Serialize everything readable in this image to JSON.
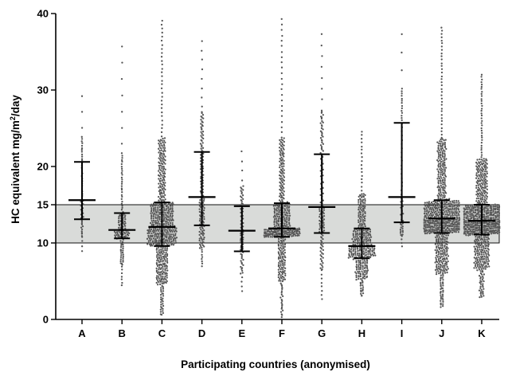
{
  "chart_data": {
    "type": "scatter",
    "subtype": "dot-plot-median-iqr",
    "xlabel": "Participating countries (anonymised)",
    "ylabel_prefix": "HC equivalent mg/m",
    "ylabel_sup": "2",
    "ylabel_suffix": "/day",
    "ylim": [
      0,
      40
    ],
    "yticks": [
      0,
      10,
      15,
      20,
      30,
      40
    ],
    "grid": false,
    "reference_band": {
      "from": 10,
      "to": 15,
      "color": "#d9dbd9"
    },
    "point_color": "#555555",
    "categories": [
      "A",
      "B",
      "C",
      "D",
      "E",
      "F",
      "G",
      "H",
      "I",
      "J",
      "K"
    ],
    "groups": [
      {
        "name": "A",
        "n": 60,
        "min": 8.6,
        "q1": 13.1,
        "median": 15.6,
        "q3": 20.6,
        "max": 30.3
      },
      {
        "name": "B",
        "n": 140,
        "min": 4.2,
        "q1": 10.6,
        "median": 11.7,
        "q3": 13.9,
        "max": 36.7
      },
      {
        "name": "C",
        "n": 600,
        "min": 0.5,
        "q1": 9.6,
        "median": 12.1,
        "q3": 15.3,
        "max": 39.3
      },
      {
        "name": "D",
        "n": 160,
        "min": 6.8,
        "q1": 12.3,
        "median": 16.0,
        "q3": 21.9,
        "max": 37.0
      },
      {
        "name": "E",
        "n": 80,
        "min": 3.4,
        "q1": 8.9,
        "median": 11.6,
        "q3": 14.8,
        "max": 22.6
      },
      {
        "name": "F",
        "n": 450,
        "min": 0.2,
        "q1": 10.8,
        "median": 11.9,
        "q3": 15.2,
        "max": 39.6
      },
      {
        "name": "G",
        "n": 150,
        "min": 2.4,
        "q1": 11.3,
        "median": 14.7,
        "q3": 21.6,
        "max": 38.0
      },
      {
        "name": "H",
        "n": 350,
        "min": 3.0,
        "q1": 8.0,
        "median": 9.6,
        "q3": 11.9,
        "max": 24.8
      },
      {
        "name": "I",
        "n": 70,
        "min": 9.4,
        "q1": 12.7,
        "median": 16.0,
        "q3": 25.7,
        "max": 38.5
      },
      {
        "name": "J",
        "n": 700,
        "min": 1.6,
        "q1": 11.3,
        "median": 13.2,
        "q3": 15.6,
        "max": 38.4
      },
      {
        "name": "K",
        "n": 700,
        "min": 2.8,
        "q1": 11.1,
        "median": 12.9,
        "q3": 15.0,
        "max": 32.2
      }
    ]
  }
}
